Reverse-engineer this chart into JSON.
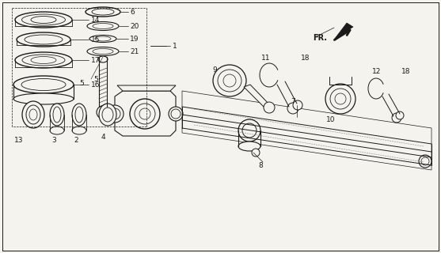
{
  "bg_color": "#f5f3ee",
  "lc": "#1a1a1a",
  "fig_w": 5.57,
  "fig_h": 3.2,
  "dpi": 100,
  "xlim": [
    0,
    557
  ],
  "ylim": [
    0,
    320
  ]
}
